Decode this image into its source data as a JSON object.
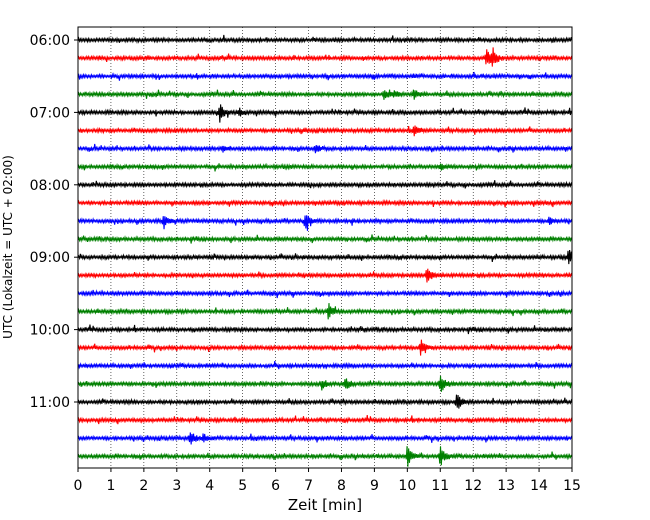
{
  "chart_data": {
    "type": "line",
    "subtype": "helicorder",
    "title": "",
    "xlabel": "Zeit  [min]",
    "ylabel": "UTC (Lokalzeit = UTC + 02:00)",
    "xlim": [
      0,
      15
    ],
    "x_ticks": [
      0,
      1,
      2,
      3,
      4,
      5,
      6,
      7,
      8,
      9,
      10,
      11,
      12,
      13,
      14,
      15
    ],
    "x_tick_labels": [
      "0",
      "1",
      "2",
      "3",
      "4",
      "5",
      "6",
      "7",
      "8",
      "9",
      "10",
      "11",
      "12",
      "13",
      "14",
      "15"
    ],
    "y_tick_labels": [
      "06:00",
      "07:00",
      "08:00",
      "09:00",
      "10:00",
      "11:00"
    ],
    "y_tick_rows": [
      0,
      4,
      8,
      12,
      16,
      20
    ],
    "row_minutes": 15,
    "rows": 24,
    "grid": "vertical dotted lines at each minute",
    "trace_colors": [
      "#000000",
      "#ff0000",
      "#0000ff",
      "#008000"
    ],
    "events": [
      {
        "row": 1,
        "minute": 12.4,
        "amp": 10
      },
      {
        "row": 1,
        "minute": 12.6,
        "amp": 8
      },
      {
        "row": 3,
        "minute": 9.3,
        "amp": 6
      },
      {
        "row": 3,
        "minute": 9.6,
        "amp": 4
      },
      {
        "row": 3,
        "minute": 10.2,
        "amp": 5
      },
      {
        "row": 4,
        "minute": 4.3,
        "amp": 10
      },
      {
        "row": 4,
        "minute": 4.9,
        "amp": 4
      },
      {
        "row": 5,
        "minute": 10.2,
        "amp": 5
      },
      {
        "row": 6,
        "minute": 7.2,
        "amp": 5
      },
      {
        "row": 6,
        "minute": 4.4,
        "amp": 3
      },
      {
        "row": 7,
        "minute": 11.0,
        "amp": 4
      },
      {
        "row": 10,
        "minute": 2.6,
        "amp": 8
      },
      {
        "row": 10,
        "minute": 6.9,
        "amp": 9
      },
      {
        "row": 10,
        "minute": 14.3,
        "amp": 4
      },
      {
        "row": 12,
        "minute": 14.9,
        "amp": 9
      },
      {
        "row": 13,
        "minute": 10.6,
        "amp": 10
      },
      {
        "row": 15,
        "minute": 7.6,
        "amp": 8
      },
      {
        "row": 17,
        "minute": 10.4,
        "amp": 9
      },
      {
        "row": 19,
        "minute": 7.4,
        "amp": 5
      },
      {
        "row": 19,
        "minute": 8.1,
        "amp": 8
      },
      {
        "row": 19,
        "minute": 11.0,
        "amp": 12
      },
      {
        "row": 20,
        "minute": 11.5,
        "amp": 9
      },
      {
        "row": 22,
        "minute": 3.4,
        "amp": 9
      },
      {
        "row": 22,
        "minute": 3.8,
        "amp": 4
      },
      {
        "row": 23,
        "minute": 10.0,
        "amp": 11
      },
      {
        "row": 23,
        "minute": 11.0,
        "amp": 10
      }
    ]
  }
}
